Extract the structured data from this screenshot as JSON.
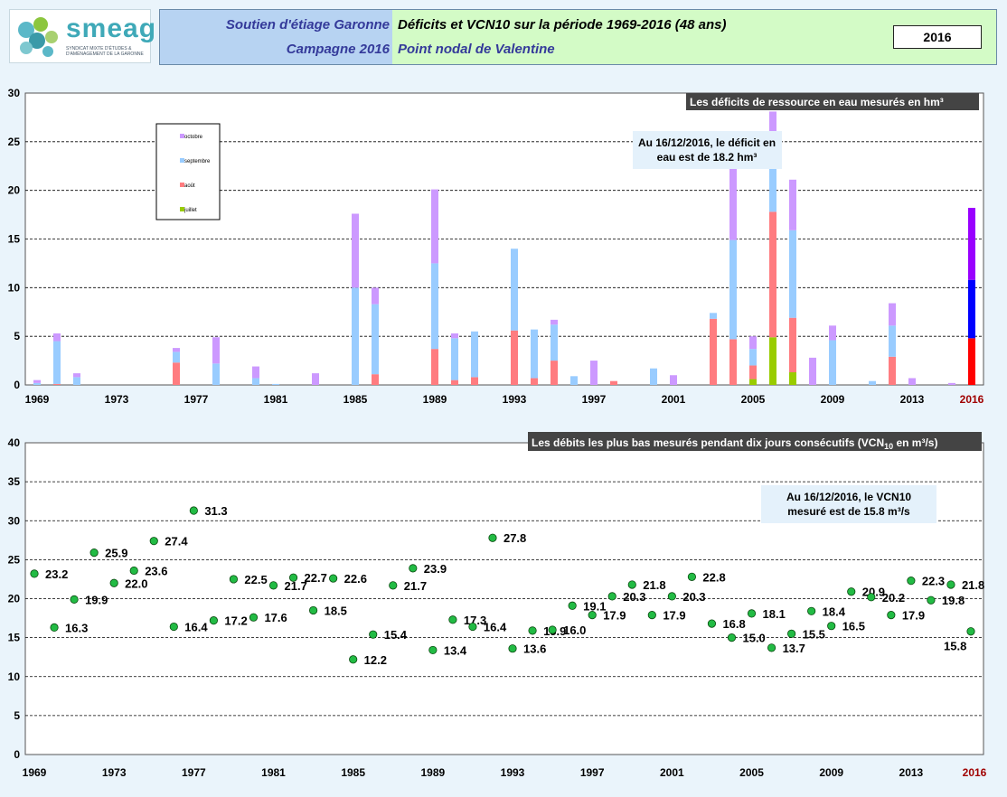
{
  "header": {
    "logo_text": "smeag",
    "logo_sub": "SYNDICAT MIXTE D'ÉTUDES & D'AMÉNAGEMENT DE LA GARONNE",
    "left_line1": "Soutien d'étiage Garonne",
    "left_line2": "Campagne 2016",
    "right_line1": "Déficits et VCN10 sur la période 1969-2016 (48 ans)",
    "right_line2": "Point nodal de Valentine",
    "year": "2016",
    "colors": {
      "left_bg": "#b7d3f2",
      "right_bg": "#d3fbc6",
      "left_text": "#343a9a"
    }
  },
  "chart_data": [
    {
      "type": "bar",
      "stacked": true,
      "title": "Les déficits de ressource  en eau mesurés en hm³",
      "annotation": "Au 16/12/2016, le déficit en eau est de 18.2 hm³",
      "annotation_lines": [
        "Au 16/12/2016, le déficit en",
        "eau est de 18.2 hm³"
      ],
      "ylim": [
        0,
        30
      ],
      "yticks": [
        0,
        5,
        10,
        15,
        20,
        25,
        30
      ],
      "grid": true,
      "legend_position": "top-left",
      "xtick_labels": [
        "1969",
        "1973",
        "1977",
        "1981",
        "1985",
        "1989",
        "1993",
        "1997",
        "2001",
        "2005",
        "2009",
        "2013",
        "2016"
      ],
      "categories": [
        1969,
        1970,
        1971,
        1972,
        1973,
        1974,
        1975,
        1976,
        1977,
        1978,
        1979,
        1980,
        1981,
        1982,
        1983,
        1984,
        1985,
        1986,
        1987,
        1988,
        1989,
        1990,
        1991,
        1992,
        1993,
        1994,
        1995,
        1996,
        1997,
        1998,
        1999,
        2000,
        2001,
        2002,
        2003,
        2004,
        2005,
        2006,
        2007,
        2008,
        2009,
        2010,
        2011,
        2012,
        2013,
        2014,
        2015,
        2016
      ],
      "series": [
        {
          "name": "juillet",
          "color": "#99cc00",
          "values": [
            0,
            0,
            0,
            0,
            0,
            0,
            0,
            0,
            0,
            0,
            0,
            0,
            0,
            0,
            0,
            0,
            0,
            0,
            0,
            0,
            0,
            0,
            0,
            0,
            0,
            0,
            0,
            0,
            0,
            0,
            0,
            0,
            0,
            0,
            0,
            0,
            0.6,
            4.9,
            1.3,
            0,
            0,
            0,
            0,
            0,
            0,
            0,
            0,
            0
          ]
        },
        {
          "name": "août",
          "color": "#ff7c80",
          "values": [
            0,
            0.1,
            0,
            0,
            0,
            0,
            0,
            2.3,
            0,
            0,
            0,
            0,
            0,
            0,
            0,
            0,
            0,
            1.1,
            0,
            0,
            3.7,
            0.5,
            0.8,
            0,
            5.6,
            0.7,
            2.5,
            0,
            0,
            0.4,
            0,
            0,
            0,
            0,
            6.8,
            4.7,
            1.4,
            12.9,
            5.6,
            0,
            0,
            0,
            0,
            2.9,
            0,
            0,
            0,
            0
          ]
        },
        {
          "name": "septembre",
          "color": "#99ccff",
          "values": [
            0.2,
            4.4,
            0.8,
            0,
            0,
            0,
            0,
            1.1,
            0,
            2.2,
            0,
            0.7,
            0.1,
            0,
            0,
            0,
            10,
            7.2,
            0,
            0,
            8.8,
            4.3,
            4.7,
            0,
            8.4,
            5,
            3.7,
            0.9,
            0,
            0,
            0,
            1.7,
            0,
            0,
            0.6,
            10.2,
            1.7,
            4.7,
            9,
            0,
            4.6,
            0,
            0.4,
            3.2,
            0,
            0,
            0,
            0
          ]
        },
        {
          "name": "octobre",
          "color": "#cc99ff",
          "values": [
            0.3,
            0.8,
            0.4,
            0,
            0,
            0,
            0,
            0.4,
            0,
            2.7,
            0,
            1.2,
            0,
            0,
            1.2,
            0,
            7.6,
            1.7,
            0,
            0,
            7.6,
            0.5,
            0,
            0,
            0,
            0,
            0.5,
            0,
            2.5,
            0,
            0,
            0,
            1,
            0,
            0,
            7.5,
            1.3,
            5.6,
            5.2,
            2.8,
            1.5,
            0,
            0,
            2.3,
            0.7,
            0,
            0.2,
            0
          ]
        },
        {
          "name": "2016",
          "color": "multi",
          "values": [
            0,
            0,
            0,
            0,
            0,
            0,
            0,
            0,
            0,
            0,
            0,
            0,
            0,
            0,
            0,
            0,
            0,
            0,
            0,
            0,
            0,
            0,
            0,
            0,
            0,
            0,
            0,
            0,
            0,
            0,
            0,
            0,
            0,
            0,
            0,
            0,
            0,
            0,
            0,
            0,
            0,
            0,
            0,
            0,
            0,
            0,
            0,
            18.2
          ]
        }
      ],
      "current_year_segments": [
        {
          "color": "#ff0000",
          "value": 4.8
        },
        {
          "color": "#0000ff",
          "value": 6
        },
        {
          "color": "#9900ff",
          "value": 7.4
        }
      ]
    },
    {
      "type": "scatter",
      "title": "Les débits les plus bas mesurés pendant dix jours consécutifs  (VCN",
      "title_sub": "10",
      "title_end": " en m³/s)",
      "annotation_lines": [
        "Au 16/12/2016, le VCN10",
        "mesuré est de 15.8 m³/s"
      ],
      "ylim": [
        0,
        40
      ],
      "yticks": [
        0,
        5,
        10,
        15,
        20,
        25,
        30,
        35,
        40
      ],
      "grid": true,
      "point_color": "#22bb44",
      "xtick_labels": [
        "1969",
        "1973",
        "1977",
        "1981",
        "1985",
        "1989",
        "1993",
        "1997",
        "2001",
        "2005",
        "2009",
        "2013",
        "2016"
      ],
      "x": [
        1969,
        1970,
        1971,
        1972,
        1973,
        1974,
        1975,
        1976,
        1977,
        1978,
        1979,
        1980,
        1981,
        1982,
        1983,
        1984,
        1985,
        1986,
        1987,
        1988,
        1989,
        1990,
        1991,
        1992,
        1993,
        1994,
        1995,
        1996,
        1997,
        1998,
        1999,
        2000,
        2001,
        2002,
        2003,
        2004,
        2005,
        2006,
        2007,
        2008,
        2009,
        2010,
        2011,
        2012,
        2013,
        2014,
        2015,
        2016
      ],
      "y": [
        23.2,
        16.3,
        19.9,
        25.9,
        22.0,
        23.6,
        27.4,
        16.4,
        31.3,
        17.2,
        22.5,
        17.6,
        21.7,
        22.7,
        18.5,
        22.6,
        12.2,
        15.4,
        21.7,
        23.9,
        13.4,
        17.3,
        16.4,
        27.8,
        13.6,
        15.9,
        16.0,
        19.1,
        17.9,
        20.3,
        21.8,
        17.9,
        20.3,
        22.8,
        16.8,
        15.0,
        18.1,
        13.7,
        15.5,
        18.4,
        16.5,
        20.9,
        20.2,
        17.9,
        22.3,
        19.8,
        21.8,
        15.8
      ],
      "labels": [
        "23.2",
        "16.3",
        "19.9",
        "25.9",
        "22.0",
        "23.6",
        "27.4",
        "16.4",
        "31.3",
        "17.2",
        "22.5",
        "17.6",
        "21.7",
        "22.7",
        "18.5",
        "22.6",
        "12.2",
        "15.4",
        "21.7",
        "23.9",
        "13.4",
        "17.3",
        "16.4",
        "27.8",
        "13.6",
        "15.9",
        "16.0",
        "19.1",
        "17.9",
        "20.3",
        "21.8",
        "17.9",
        "20.3",
        "22.8",
        "16.8",
        "15.0",
        "18.1",
        "13.7",
        "15.5",
        "18.4",
        "16.5",
        "20.9",
        "20.2",
        "17.9",
        "22.3",
        "19.8",
        "21.8",
        "15.8"
      ]
    }
  ]
}
